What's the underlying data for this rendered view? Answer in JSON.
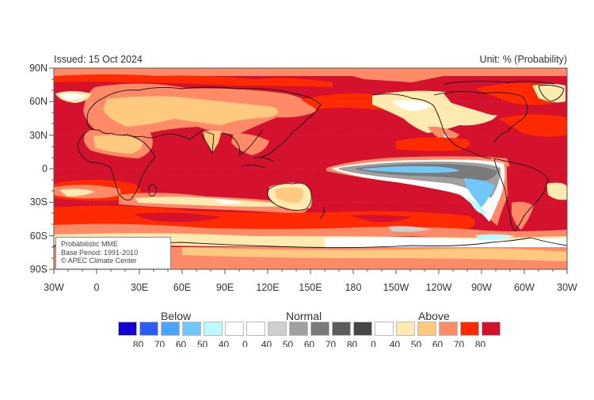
{
  "header": {
    "issued": "Issued: 15 Oct 2024",
    "unit": "Unit: % (Probability)"
  },
  "map": {
    "type": "probabilistic-forecast-map",
    "projection": "cylindrical-equidistant",
    "lat_labels": [
      "90N",
      "60N",
      "30N",
      "0",
      "30S",
      "60S",
      "90S"
    ],
    "lon_labels": [
      "30W",
      "0",
      "30E",
      "60E",
      "90E",
      "120E",
      "150E",
      "180",
      "150W",
      "120W",
      "90W",
      "60W",
      "30W"
    ],
    "infobox": {
      "line1": "Probabilistic MME",
      "line2": "Base Period: 1991-2010",
      "line3": "© APEC Climate Center"
    }
  },
  "legend": {
    "groups": [
      {
        "label": "Below"
      },
      {
        "label": "Normal"
      },
      {
        "label": "Above"
      }
    ],
    "boxes": [
      {
        "value": "80",
        "color": "#1400d0"
      },
      {
        "value": "70",
        "color": "#2a5cff"
      },
      {
        "value": "60",
        "color": "#4aa4f8"
      },
      {
        "value": "50",
        "color": "#70c8fa"
      },
      {
        "value": "40",
        "color": "#bcfafc"
      },
      {
        "value": "0",
        "color": "#ffffff"
      },
      {
        "value": "40",
        "color": "#ffffff"
      },
      {
        "value": "50",
        "color": "#cfcfcf"
      },
      {
        "value": "60",
        "color": "#a0a0a0"
      },
      {
        "value": "70",
        "color": "#7a7a7a"
      },
      {
        "value": "80",
        "color": "#5c5c5c"
      },
      {
        "value": "0",
        "color": "#464646"
      },
      {
        "value": "40",
        "color": "#ffffff"
      },
      {
        "value": "50",
        "color": "#ffeab0"
      },
      {
        "value": "60",
        "color": "#ffc980"
      },
      {
        "value": "70",
        "color": "#ff8a68"
      },
      {
        "value": "80",
        "color": "#ff2a00"
      },
      {
        "value": "",
        "color": "#d4122e"
      }
    ],
    "tick_labels": [
      "80",
      "70",
      "60",
      "50",
      "40",
      "0",
      "40",
      "50",
      "60",
      "70",
      "80",
      "0",
      "40",
      "50",
      "60",
      "70",
      "80"
    ]
  },
  "colors": {
    "above_80": "#d4122e",
    "above_70": "#ff2a00",
    "above_60": "#ff8a68",
    "above_50": "#ffc980",
    "above_40": "#ffeab0",
    "normal_50": "#cfcfcf",
    "normal_60": "#a0a0a0",
    "normal_70": "#7a7a7a",
    "below_50": "#70c8fa",
    "below_60": "#4aa4f8",
    "below_40": "#bcfafc"
  }
}
